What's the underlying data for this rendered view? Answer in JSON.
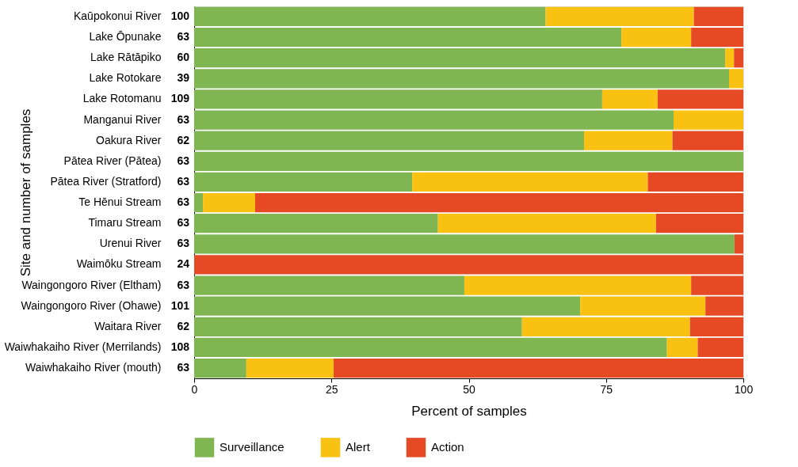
{
  "chart_data": {
    "type": "bar",
    "orientation": "horizontal",
    "stacked": true,
    "xlabel": "Percent of samples",
    "ylabel": "Site and number of samples",
    "categories": [
      "Kaūpokonui River",
      "Lake Ōpunake",
      "Lake Rātāpiko",
      "Lake Rotokare",
      "Lake Rotomanu",
      "Manganui River",
      "Oakura River",
      "Pātea River (Pātea)",
      "Pātea River (Stratford)",
      "Te Hēnui Stream",
      "Timaru Stream",
      "Urenui River",
      "Waimōku Stream",
      "Waingongoro River (Eltham)",
      "Waingongoro River (Ohawe)",
      "Waitara River",
      "Waiwhakaiho River (Merrilands)",
      "Waiwhakaiho River (mouth)"
    ],
    "series": [
      {
        "name": "Surveillance",
        "color": "#7fb651",
        "values": [
          64,
          77.8,
          96.7,
          97.4,
          74.3,
          87.3,
          71,
          100,
          39.7,
          1.6,
          44.4,
          98.4,
          null,
          49.2,
          70.3,
          59.7,
          86.1,
          9.5
        ]
      },
      {
        "name": "Alert",
        "color": "#f9c112",
        "values": [
          27,
          12.7,
          1.6,
          2.6,
          10.1,
          12.7,
          16.1,
          null,
          42.9,
          9.5,
          39.7,
          null,
          null,
          41.3,
          22.8,
          30.6,
          5.6,
          15.9
        ]
      },
      {
        "name": "Action",
        "color": "#e64a24",
        "values": [
          9,
          9.5,
          1.7,
          null,
          15.6,
          null,
          12.9,
          null,
          17.4,
          88.9,
          15.9,
          1.6,
          100,
          9.5,
          6.9,
          9.7,
          8.3,
          74.6
        ]
      }
    ],
    "xlim": [
      0,
      100
    ],
    "xticks": [
      0,
      25,
      50,
      75,
      100
    ],
    "grid": false,
    "legend": "bottom",
    "annotations": [
      "100",
      "63",
      "60",
      "39",
      "109",
      "63",
      "62",
      "63",
      "63",
      "63",
      "63",
      "63",
      "24",
      "63",
      "101",
      "62",
      "108",
      "63"
    ]
  }
}
